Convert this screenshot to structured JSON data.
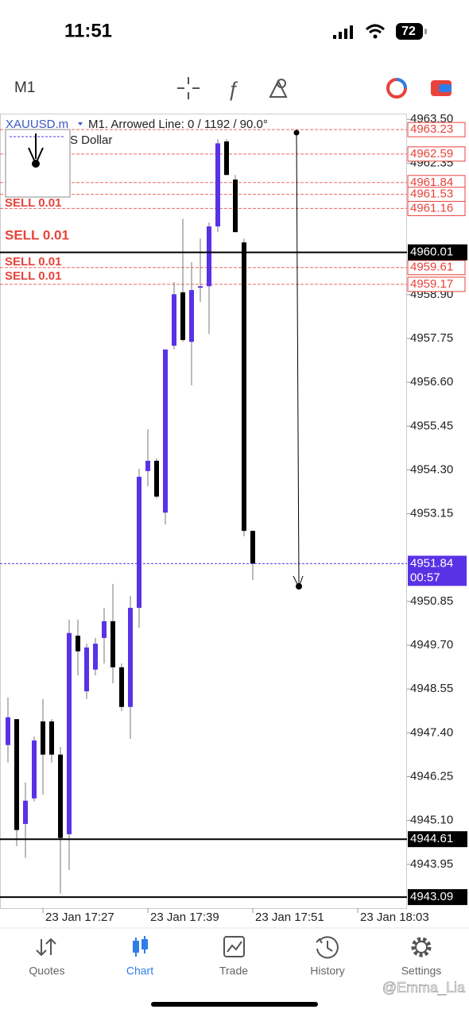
{
  "status": {
    "time": "11:51",
    "battery": "72"
  },
  "toolbar": {
    "timeframe": "M1"
  },
  "chart_header": {
    "symbol": "XAUUSD.m",
    "object_info": "M1. Arrowed Line: 0 / 1192 / 90.0°",
    "description": "S Dollar"
  },
  "order_labels": [
    "SELL 0.01",
    "SELL 0.01",
    "SELL 0.01",
    "SELL 0.01"
  ],
  "chart_data": {
    "type": "candlestick",
    "x": [
      "23 Jan 17:23",
      "23 Jan 17:24",
      "23 Jan 17:25",
      "23 Jan 17:26",
      "23 Jan 17:27",
      "23 Jan 17:28",
      "23 Jan 17:29",
      "23 Jan 17:30",
      "23 Jan 17:31",
      "23 Jan 17:32",
      "23 Jan 17:33",
      "23 Jan 17:34",
      "23 Jan 17:35",
      "23 Jan 17:36",
      "23 Jan 17:37",
      "23 Jan 17:38",
      "23 Jan 17:39",
      "23 Jan 17:40",
      "23 Jan 17:41",
      "23 Jan 17:42",
      "23 Jan 17:43",
      "23 Jan 17:44",
      "23 Jan 17:45",
      "23 Jan 17:46",
      "23 Jan 17:47",
      "23 Jan 17:48",
      "23 Jan 17:49",
      "23 Jan 17:50",
      "23 Jan 17:51"
    ],
    "open": [
      4947.08,
      4947.76,
      4945.01,
      4945.68,
      4947.7,
      4947.7,
      4946.83,
      4944.74,
      4949.95,
      4948.49,
      4949.06,
      4949.89,
      4950.33,
      4949.12,
      4948.08,
      4950.68,
      4954.27,
      4954.54,
      4953.18,
      4957.56,
      4958.96,
      4957.66,
      4959.08,
      4959.12,
      4960.69,
      4962.92,
      4961.92,
      4960.27,
      4952.7
    ],
    "high": [
      4948.33,
      4947.76,
      4946.1,
      4947.3,
      4948.29,
      4947.76,
      4947.03,
      4950.37,
      4950.37,
      4949.74,
      4949.89,
      4950.68,
      4951.31,
      4949.22,
      4950.99,
      4954.33,
      4955.37,
      4954.6,
      4957.46,
      4959.23,
      4960.89,
      4959.75,
      4960.37,
      4960.79,
      4962.98,
      4962.98,
      4962.04,
      4960.37,
      4952.7
    ],
    "low": [
      4946.62,
      4944.43,
      4944.12,
      4945.6,
      4945.78,
      4946.62,
      4943.18,
      4943.8,
      4948.91,
      4948.29,
      4948.91,
      4949.22,
      4948.7,
      4947.97,
      4947.24,
      4950.16,
      4953.87,
      4953.55,
      4952.87,
      4957.46,
      4957.66,
      4956.52,
      4958.71,
      4957.87,
      4960.54,
      4962.04,
      4960.54,
      4952.56,
      4951.41
    ],
    "close": [
      4947.81,
      4944.85,
      4945.62,
      4947.2,
      4946.83,
      4946.83,
      4944.64,
      4950.02,
      4949.54,
      4949.64,
      4949.74,
      4950.33,
      4949.12,
      4948.08,
      4950.68,
      4954.12,
      4954.54,
      4953.6,
      4957.46,
      4958.91,
      4957.71,
      4959.02,
      4959.12,
      4960.69,
      4962.87,
      4962.04,
      4960.54,
      4952.7,
      4951.84
    ],
    "up_color": "#5a32e6",
    "down_color": "#000000",
    "ylim": [
      4942.8,
      4963.65
    ],
    "yticks": [
      {
        "value": 4963.5,
        "label": "4963.50"
      },
      4962.35,
      {
        "value": 4958.9,
        "label": "4958.90"
      },
      4957.75,
      {
        "value": 4956.6,
        "label": "4956.60"
      },
      4955.45,
      {
        "value": 4954.3,
        "label": "4954.30"
      },
      4953.15,
      4950.85,
      {
        "value": 4949.7,
        "label": "4949.70"
      },
      4948.55,
      {
        "value": 4947.4,
        "label": "4947.40"
      },
      4946.25,
      {
        "value": 4945.1,
        "label": "4945.10"
      },
      4943.95
    ],
    "xticks": [
      "23 Jan 17:27",
      "23 Jan 17:39",
      "23 Jan 17:51",
      "23 Jan 18:03"
    ],
    "red_levels": [
      4963.23,
      4962.59,
      4961.84,
      4961.53,
      4961.16,
      4959.61,
      4959.17
    ],
    "red_color": "#e8423b",
    "black_levels": [
      4960.01,
      4944.61,
      4943.09
    ],
    "bid": 4951.84,
    "bid_timer": "00:57",
    "bid_color": "#5a32e6"
  },
  "tabs": [
    "Quotes",
    "Chart",
    "Trade",
    "History",
    "Settings"
  ],
  "watermark": "@Emma_Lia"
}
